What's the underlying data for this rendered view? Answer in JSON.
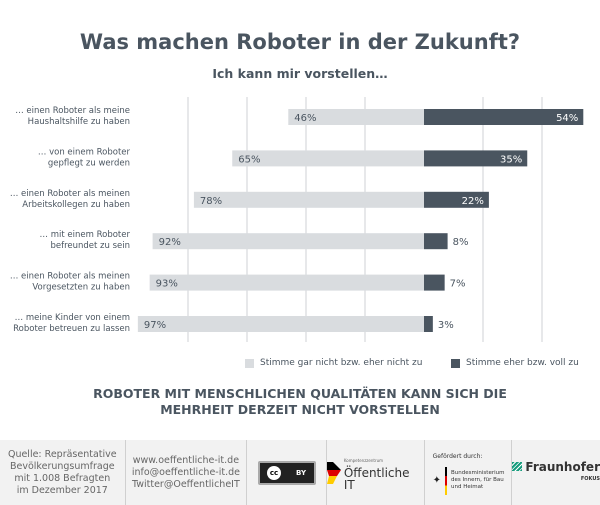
{
  "title": "Was machen Roboter in der Zukunft?",
  "subtitle": "Ich kann mir vorstellen…",
  "chart_data": {
    "type": "bar",
    "orientation": "horizontal-diverging",
    "categories": [
      [
        "… einen Roboter als meine",
        "Haushaltshilfe zu haben"
      ],
      [
        "… von einem Roboter",
        "gepflegt zu werden"
      ],
      [
        "… einen Roboter als meinen",
        "Arbeitskollegen zu haben"
      ],
      [
        "… mit einem Roboter",
        "befreundet zu sein"
      ],
      [
        "… einen Roboter als meinen",
        "Vorgesetzten zu haben"
      ],
      [
        "… meine Kinder von einem",
        "Roboter betreuen zu lassen"
      ]
    ],
    "series": [
      {
        "name": "Stimme gar nicht bzw. eher nicht zu",
        "values": [
          46,
          65,
          78,
          92,
          93,
          97
        ],
        "color": "#d9dcdf"
      },
      {
        "name": "Stimme eher bzw. voll zu",
        "values": [
          54,
          35,
          22,
          8,
          7,
          3
        ],
        "color": "#4a5560"
      }
    ],
    "value_suffix": "%",
    "xlim": [
      -100,
      60
    ],
    "grid": true,
    "legend": "bottom"
  },
  "conclusion": [
    "ROBOTER MIT MENSCHLICHEN QUALITÄTEN KANN SICH DIE",
    "MEHRHEIT DERZEIT NICHT VORSTELLEN"
  ],
  "footer": {
    "source": [
      "Quelle: Repräsentative",
      "Bevölkerungsumfrage",
      "mit 1.008 Befragten",
      "im Dezember 2017"
    ],
    "contact": [
      "www.oeffentliche-it.de",
      "info@oeffentliche-it.de",
      "Twitter@OeffentlicheIT"
    ],
    "license": "BY",
    "kompetenz_small": "Kompetenzzentrum",
    "kompetenz": "Öffentliche IT",
    "funded_by": "Gefördert durch:",
    "ministry": [
      "Bundesministerium",
      "des Innern, für Bau",
      "und Heimat"
    ],
    "fraunhofer": "Fraunhofer",
    "fokus": "FOKUS"
  }
}
